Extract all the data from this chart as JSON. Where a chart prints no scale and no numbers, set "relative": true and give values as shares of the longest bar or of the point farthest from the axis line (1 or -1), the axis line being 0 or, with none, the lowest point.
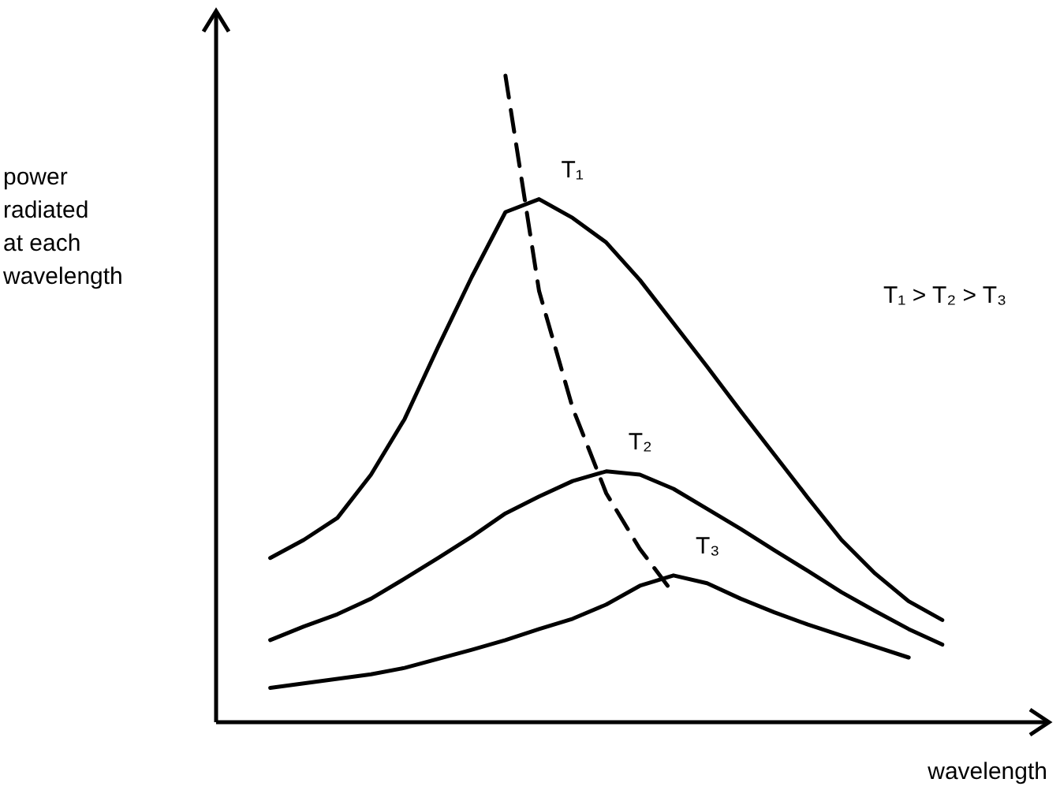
{
  "chart_data": {
    "type": "line",
    "relative": true,
    "xlabel": "wavelength",
    "ylabel": "power radiated at each wavelength",
    "annotations": [
      "T₁ > T₂ > T₃"
    ],
    "categories": [
      null,
      null,
      null,
      null,
      null,
      null,
      null,
      null,
      null,
      null,
      null,
      null,
      null,
      null,
      null,
      null,
      null,
      null,
      null,
      null,
      null,
      null,
      null,
      null
    ],
    "series": [
      {
        "name": "T₁",
        "color": "#000000",
        "values": [
          null,
          0.254,
          0.282,
          0.316,
          0.383,
          0.469,
          0.581,
          0.689,
          0.789,
          0.809,
          0.78,
          0.742,
          0.684,
          0.617,
          0.55,
          0.481,
          0.414,
          0.347,
          0.282,
          0.23,
          0.187,
          0.158,
          null,
          null
        ]
      },
      {
        "name": "T₂",
        "color": "#000000",
        "values": [
          null,
          0.127,
          0.148,
          0.167,
          0.191,
          0.222,
          0.254,
          0.287,
          0.323,
          0.349,
          0.373,
          0.388,
          0.383,
          0.361,
          0.33,
          0.299,
          0.266,
          0.234,
          0.201,
          0.172,
          0.144,
          0.12,
          null,
          null
        ]
      },
      {
        "name": "T₃",
        "color": "#000000",
        "values": [
          null,
          0.053,
          0.06,
          0.067,
          0.074,
          0.084,
          0.098,
          0.112,
          0.127,
          0.144,
          0.16,
          0.182,
          0.211,
          0.227,
          0.215,
          0.191,
          0.17,
          0.151,
          0.134,
          0.117,
          0.1,
          null,
          null,
          null
        ]
      },
      {
        "color": "#000000",
        "line_style": "dashed",
        "values": [
          null,
          null,
          null,
          null,
          null,
          null,
          null,
          null,
          1.0,
          0.667,
          0.486,
          0.354,
          0.268,
          0.199,
          null,
          null,
          null,
          null,
          null,
          null,
          null,
          null,
          null,
          null
        ]
      }
    ]
  }
}
